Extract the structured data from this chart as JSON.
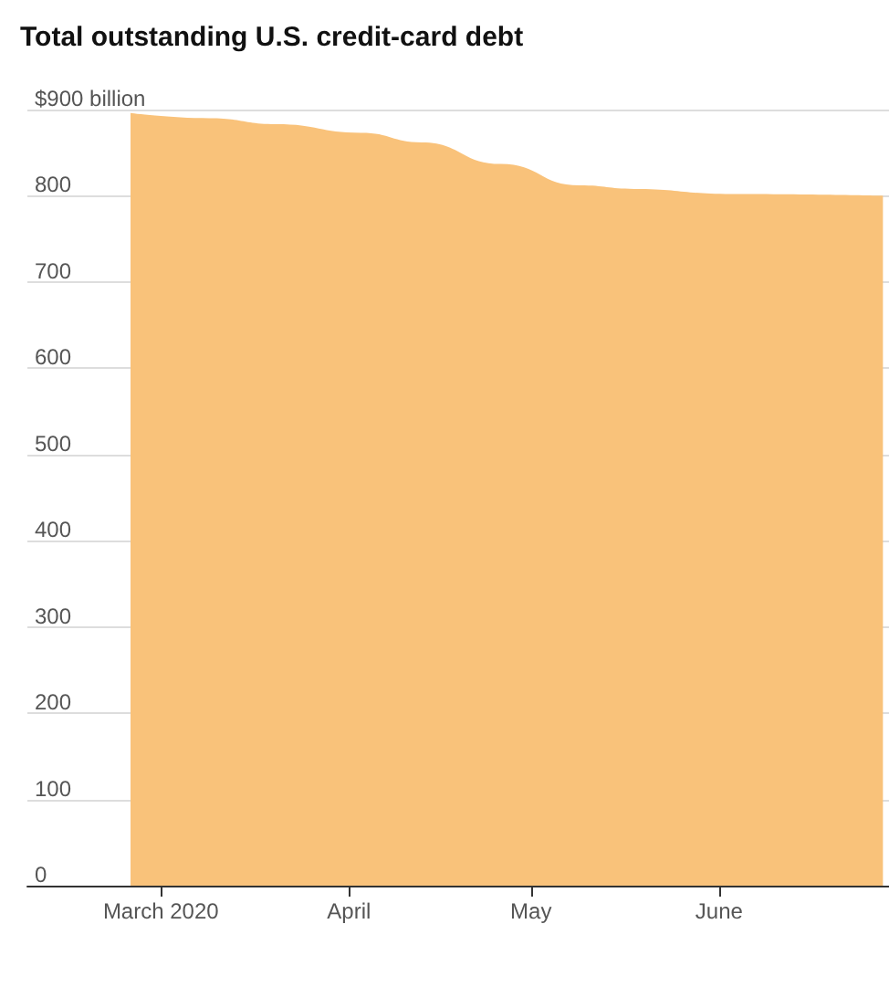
{
  "chart_data": {
    "type": "area",
    "title": "Total outstanding U.S. credit-card debt",
    "x": [
      "2020-02-25",
      "2020-03-09",
      "2020-03-20",
      "2020-04-03",
      "2020-04-13",
      "2020-04-26",
      "2020-05-09",
      "2020-05-18",
      "2020-06-03",
      "2020-06-28"
    ],
    "series": [
      {
        "color": "#f9c27a",
        "values": [
          896,
          890,
          883,
          873,
          862,
          837,
          812,
          808,
          802,
          800
        ]
      }
    ],
    "xlim": [
      "2020-02-08",
      "2020-06-29"
    ],
    "xticks": [
      {
        "value": "2020-03-01",
        "label": "March 2020"
      },
      {
        "value": "2020-04-01",
        "label": "April"
      },
      {
        "value": "2020-05-01",
        "label": "May"
      },
      {
        "value": "2020-06-01",
        "label": "June"
      }
    ],
    "ylim": [
      0,
      900
    ],
    "yticks": [
      0,
      100,
      200,
      300,
      400,
      500,
      600,
      700,
      800,
      {
        "value": 900,
        "label": "$900 billion"
      }
    ],
    "grid": "y"
  }
}
